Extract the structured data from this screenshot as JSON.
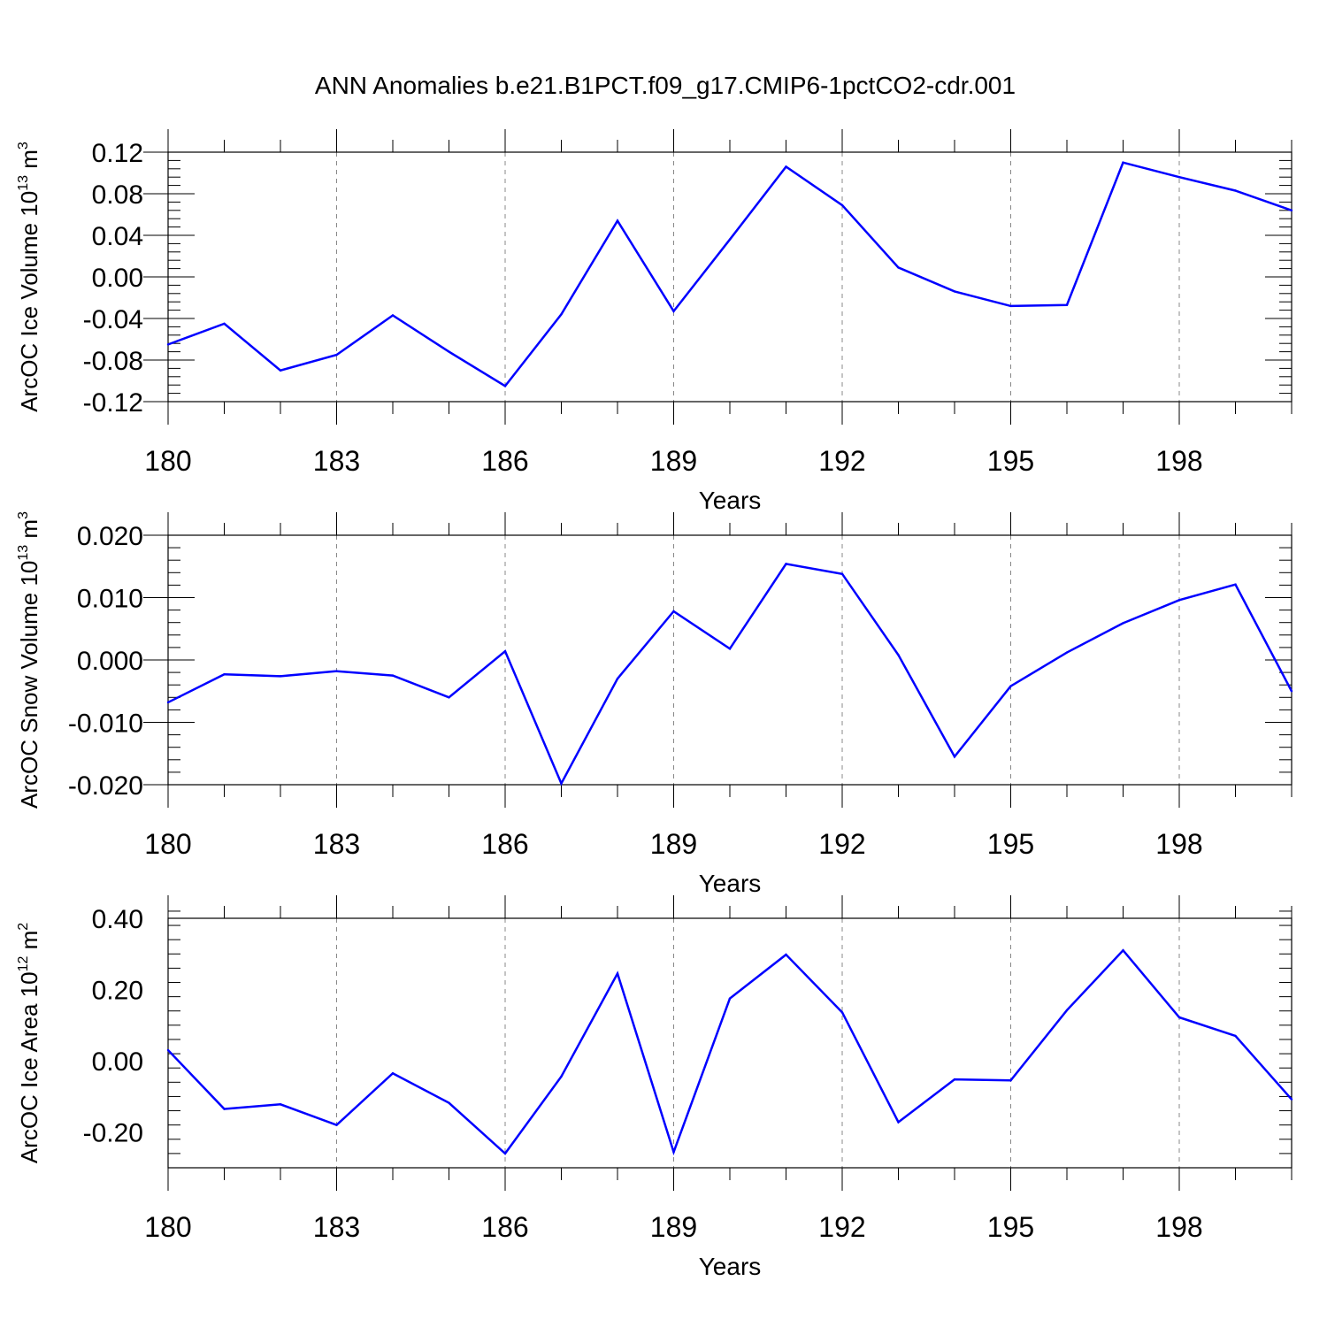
{
  "title": "ANN Anomalies b.e21.B1PCT.f09_g17.CMIP6-1pctCO2-cdr.001",
  "line_color": "#0000ff",
  "chart_data": [
    {
      "type": "line",
      "ylabel": {
        "text": "ArcOC Ice Volume 10",
        "sup1": "13",
        "unit": " m",
        "sup2": "3"
      },
      "xlabel": "Years",
      "x": [
        180,
        181,
        182,
        183,
        184,
        185,
        186,
        187,
        188,
        189,
        190,
        191,
        192,
        193,
        194,
        195,
        196,
        197,
        198,
        199,
        200
      ],
      "values": [
        -0.065,
        -0.045,
        -0.09,
        -0.075,
        -0.037,
        -0.072,
        -0.105,
        -0.036,
        0.054,
        -0.033,
        0.036,
        0.106,
        0.069,
        0.009,
        -0.014,
        -0.028,
        -0.027,
        0.11,
        0.096,
        0.083,
        0.064
      ],
      "xlim": [
        180,
        200
      ],
      "ylim": [
        -0.12,
        0.12
      ],
      "xticks": [
        "180",
        "183",
        "186",
        "189",
        "192",
        "195",
        "198"
      ],
      "yticks": [
        "-0.12",
        "-0.08",
        "-0.04",
        "0.00",
        "0.04",
        "0.08",
        "0.12"
      ]
    },
    {
      "type": "line",
      "ylabel": {
        "text": "ArcOC Snow Volume 10",
        "sup1": "13",
        "unit": " m",
        "sup2": "3"
      },
      "xlabel": "Years",
      "x": [
        180,
        181,
        182,
        183,
        184,
        185,
        186,
        187,
        188,
        189,
        190,
        191,
        192,
        193,
        194,
        195,
        196,
        197,
        198,
        199,
        200
      ],
      "values": [
        -0.0068,
        -0.0023,
        -0.0026,
        -0.0018,
        -0.0025,
        -0.006,
        0.0014,
        -0.0198,
        -0.003,
        0.0078,
        0.0018,
        0.0154,
        0.0138,
        0.0008,
        -0.0155,
        -0.0042,
        0.0012,
        0.0059,
        0.0096,
        0.0121,
        -0.005
      ],
      "xlim": [
        180,
        200
      ],
      "ylim": [
        -0.02,
        0.02
      ],
      "xticks": [
        "180",
        "183",
        "186",
        "189",
        "192",
        "195",
        "198"
      ],
      "yticks": [
        "-0.020",
        "-0.010",
        "0.000",
        "0.010",
        "0.020"
      ]
    },
    {
      "type": "line",
      "ylabel": {
        "text": "ArcOC Ice Area 10",
        "sup1": "12",
        "unit": " m",
        "sup2": "2"
      },
      "xlabel": "Years",
      "x": [
        180,
        181,
        182,
        183,
        184,
        185,
        186,
        187,
        188,
        189,
        190,
        191,
        192,
        193,
        194,
        195,
        196,
        197,
        198,
        199,
        200
      ],
      "values": [
        0.03,
        -0.135,
        -0.122,
        -0.18,
        -0.035,
        -0.118,
        -0.26,
        -0.044,
        0.245,
        -0.256,
        0.175,
        0.298,
        0.136,
        -0.172,
        -0.052,
        -0.055,
        0.142,
        0.31,
        0.122,
        0.07,
        -0.108
      ],
      "xlim": [
        180,
        200
      ],
      "ylim": [
        -0.3,
        0.4
      ],
      "xticks": [
        "180",
        "183",
        "186",
        "189",
        "192",
        "195",
        "198"
      ],
      "yticks": [
        "-0.20",
        "0.00",
        "0.20",
        "0.40"
      ]
    }
  ]
}
